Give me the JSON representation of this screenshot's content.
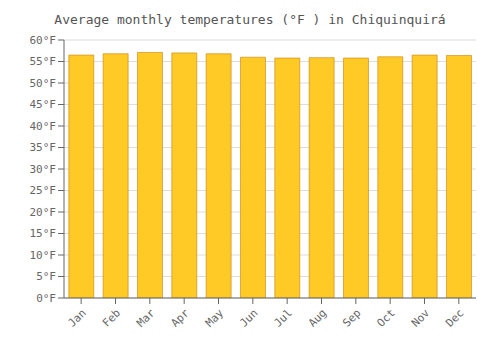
{
  "chart_data": {
    "type": "bar",
    "title": "Average monthly temperatures (°F ) in Chiquinquirá",
    "categories": [
      "Jan",
      "Feb",
      "Mar",
      "Apr",
      "May",
      "Jun",
      "Jul",
      "Aug",
      "Sep",
      "Oct",
      "Nov",
      "Dec"
    ],
    "values": [
      56.5,
      56.8,
      57.1,
      57.0,
      56.8,
      56.0,
      55.8,
      55.9,
      55.8,
      56.1,
      56.5,
      56.4
    ],
    "color": "#FFC926",
    "ylim": [
      0,
      60
    ],
    "yticks": [
      {
        "value": 0,
        "label": "0°F"
      },
      {
        "value": 5,
        "label": "5°F"
      },
      {
        "value": 10,
        "label": "10°F"
      },
      {
        "value": 15,
        "label": "15°F"
      },
      {
        "value": 20,
        "label": "20°F"
      },
      {
        "value": 25,
        "label": "25°F"
      },
      {
        "value": 30,
        "label": "30°F"
      },
      {
        "value": 35,
        "label": "35°F"
      },
      {
        "value": 40,
        "label": "40°F"
      },
      {
        "value": 45,
        "label": "45°F"
      },
      {
        "value": 50,
        "label": "50°F"
      },
      {
        "value": 55,
        "label": "55°F"
      },
      {
        "value": 60,
        "label": "60°F"
      }
    ],
    "grid": true
  }
}
